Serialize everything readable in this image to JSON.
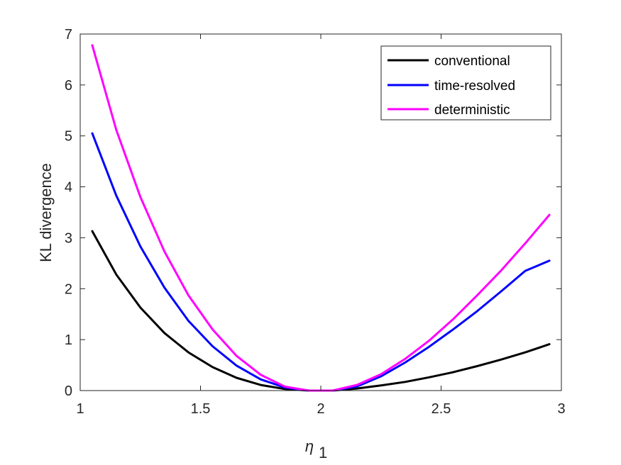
{
  "chart_data": {
    "type": "line",
    "title": "",
    "xlabel": "η",
    "xlabel_subscript": "1",
    "ylabel": "KL divergence",
    "xlim": [
      1,
      3
    ],
    "ylim": [
      0,
      7
    ],
    "xticks": [
      1,
      1.5,
      2,
      2.5,
      3
    ],
    "xtick_labels": [
      "1",
      "1.5",
      "2",
      "2.5",
      "3"
    ],
    "yticks": [
      0,
      1,
      2,
      3,
      4,
      5,
      6,
      7
    ],
    "ytick_labels": [
      "0",
      "1",
      "2",
      "3",
      "4",
      "5",
      "6",
      "7"
    ],
    "grid": false,
    "legend_position": "top-right",
    "x": [
      1.05,
      1.15,
      1.25,
      1.35,
      1.45,
      1.55,
      1.65,
      1.75,
      1.85,
      1.95,
      2.05,
      2.15,
      2.25,
      2.35,
      2.45,
      2.55,
      2.65,
      2.75,
      2.85,
      2.95
    ],
    "series": [
      {
        "name": "conventional",
        "color": "#000000",
        "values": [
          3.13,
          2.28,
          1.63,
          1.13,
          0.75,
          0.46,
          0.25,
          0.11,
          0.03,
          0.0,
          0.0,
          0.04,
          0.1,
          0.17,
          0.26,
          0.36,
          0.48,
          0.61,
          0.75,
          0.91
        ]
      },
      {
        "name": "time-resolved",
        "color": "#0000ff",
        "values": [
          5.05,
          3.83,
          2.83,
          2.02,
          1.37,
          0.87,
          0.49,
          0.22,
          0.06,
          0.0,
          0.0,
          0.08,
          0.28,
          0.55,
          0.86,
          1.2,
          1.56,
          1.95,
          2.35,
          2.55
        ]
      },
      {
        "name": "deterministic",
        "color": "#ff00ff",
        "values": [
          6.78,
          5.12,
          3.8,
          2.73,
          1.87,
          1.2,
          0.68,
          0.31,
          0.08,
          0.0,
          0.0,
          0.11,
          0.32,
          0.62,
          0.98,
          1.4,
          1.87,
          2.36,
          2.89,
          3.45
        ]
      }
    ]
  }
}
